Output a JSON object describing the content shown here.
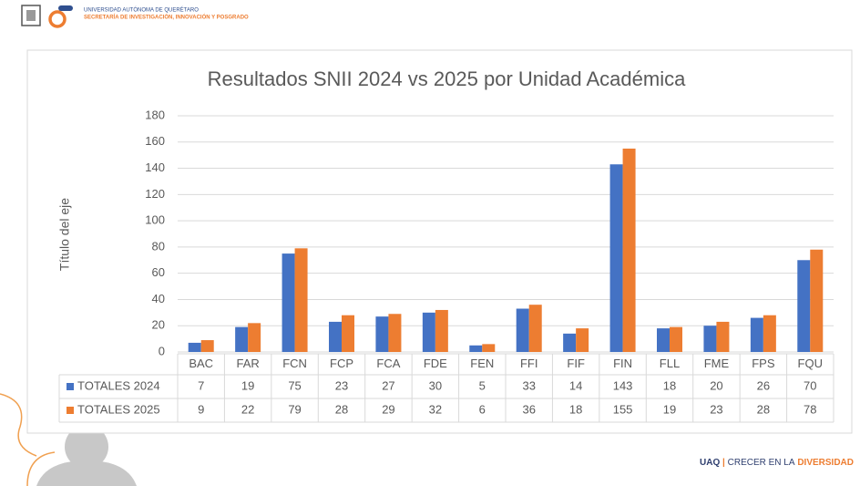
{
  "header": {
    "institution": "UNIVERSIDAD AUTÓNOMA DE QUERÉTARO",
    "department": "SECRETARÍA DE INVESTIGACIÓN, INNOVACIÓN Y POSGRADO"
  },
  "footer": {
    "brand": "UAQ",
    "separator": "|",
    "slogan": "CRECER EN LA",
    "slogan_highlight": "DIVERSIDAD"
  },
  "chart_data": {
    "type": "bar",
    "title": "Resultados SNII 2024 vs 2025 por Unidad Académica",
    "y_label": "Título del eje",
    "categories": [
      "BAC",
      "FAR",
      "FCN",
      "FCP",
      "FCA",
      "FDE",
      "FEN",
      "FFI",
      "FIF",
      "FIN",
      "FLL",
      "FME",
      "FPS",
      "FQU"
    ],
    "series": [
      {
        "name": "TOTALES 2024",
        "color": "#4472c4",
        "values": [
          7,
          19,
          75,
          23,
          27,
          30,
          5,
          33,
          14,
          143,
          18,
          20,
          26,
          70
        ]
      },
      {
        "name": "TOTALES 2025",
        "color": "#ed7d31",
        "values": [
          9,
          22,
          79,
          28,
          29,
          32,
          6,
          36,
          18,
          155,
          19,
          23,
          28,
          78
        ]
      }
    ],
    "ylim": [
      0,
      180
    ],
    "yticks": [
      0,
      20,
      40,
      60,
      80,
      100,
      120,
      140,
      160,
      180
    ],
    "grid": true
  }
}
